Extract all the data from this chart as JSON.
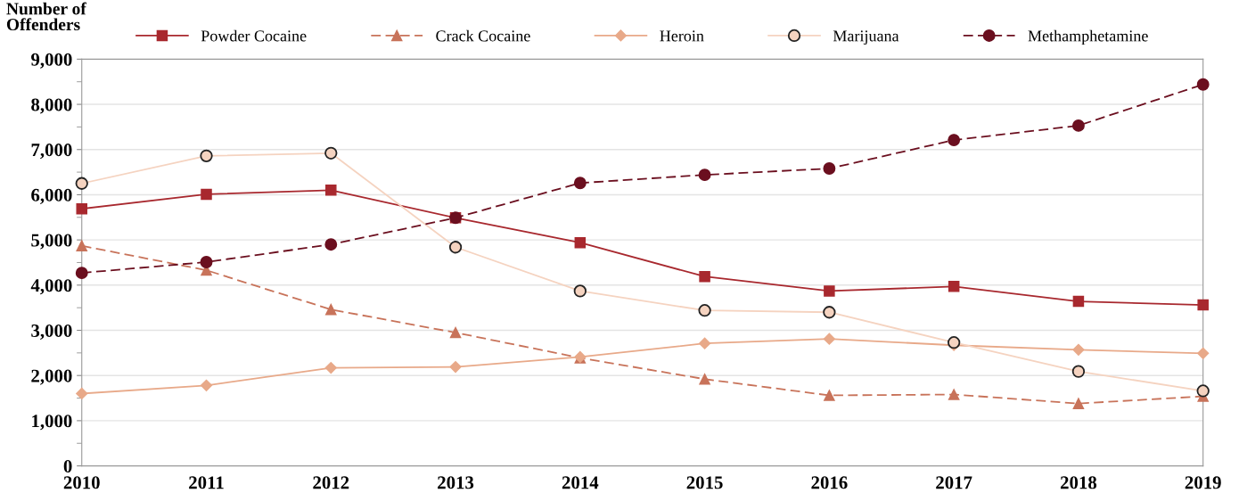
{
  "chart_data": {
    "type": "line",
    "ylabel": "Number of\nOffenders",
    "x": [
      2010,
      2011,
      2012,
      2013,
      2014,
      2015,
      2016,
      2017,
      2018,
      2019
    ],
    "xlim": [
      2010,
      2019
    ],
    "xticks": [
      2010,
      2011,
      2012,
      2013,
      2014,
      2015,
      2016,
      2017,
      2018,
      2019
    ],
    "ylim": [
      0,
      9000
    ],
    "yticks": [
      {
        "value": 0,
        "label": "0"
      },
      {
        "value": 1000,
        "label": "1,000"
      },
      {
        "value": 2000,
        "label": "2,000"
      },
      {
        "value": 3000,
        "label": "3,000"
      },
      {
        "value": 4000,
        "label": "4,000"
      },
      {
        "value": 5000,
        "label": "5,000"
      },
      {
        "value": 6000,
        "label": "6,000"
      },
      {
        "value": 7000,
        "label": "7,000"
      },
      {
        "value": 8000,
        "label": "8,000"
      },
      {
        "value": 9000,
        "label": "9,000"
      }
    ],
    "grid": "y",
    "legend": "top",
    "series": [
      {
        "name": "Powder Cocaine",
        "color": "#a8282e",
        "marker": "square",
        "line_style": "solid",
        "values": [
          5690,
          6010,
          6100,
          5490,
          4940,
          4190,
          3870,
          3970,
          3640,
          3560
        ]
      },
      {
        "name": "Crack Cocaine",
        "color": "#c8735a",
        "marker": "triangle",
        "line_style": "dashed",
        "values": [
          4870,
          4330,
          3460,
          2950,
          2390,
          1920,
          1560,
          1580,
          1380,
          1540
        ]
      },
      {
        "name": "Heroin",
        "color": "#e8a989",
        "marker": "diamond",
        "line_style": "solid",
        "values": [
          1600,
          1780,
          2170,
          2190,
          2410,
          2710,
          2810,
          2670,
          2570,
          2490
        ]
      },
      {
        "name": "Marijuana",
        "color": "#f5d3c0",
        "marker": "circle",
        "line_style": "solid",
        "values": [
          6250,
          6860,
          6920,
          4840,
          3870,
          3440,
          3400,
          2730,
          2090,
          1660
        ]
      },
      {
        "name": "Methamphetamine",
        "color": "#6b0f1f",
        "marker": "circle",
        "line_style": "dashed",
        "values": [
          4270,
          4510,
          4900,
          5490,
          6260,
          6440,
          6580,
          7210,
          7530,
          8440
        ]
      }
    ]
  }
}
